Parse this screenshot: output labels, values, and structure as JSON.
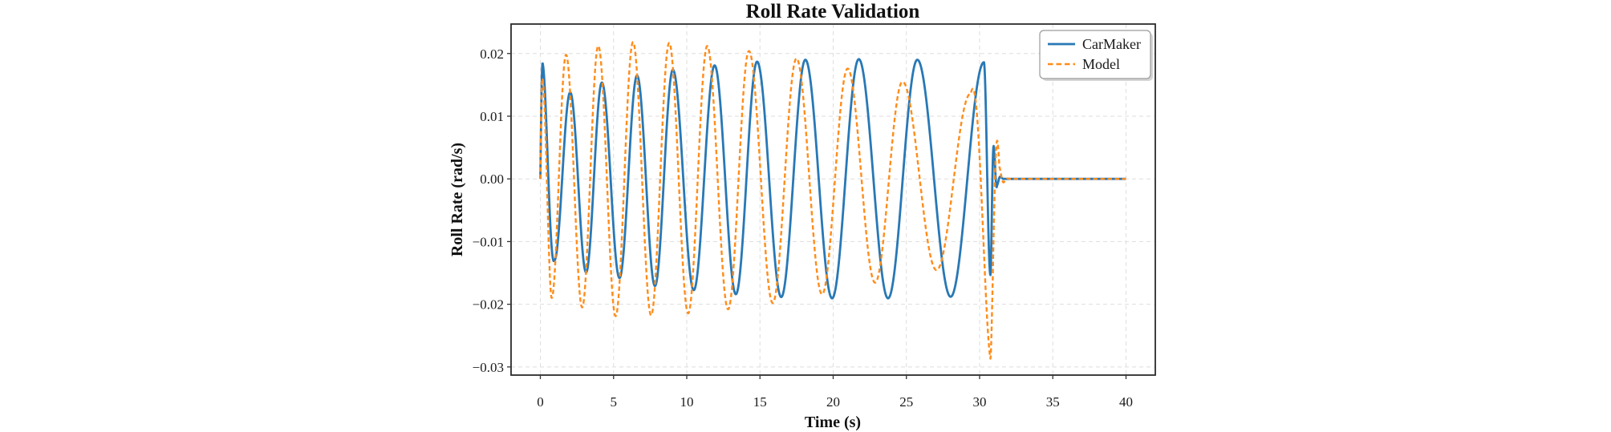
{
  "chart_data": {
    "type": "line",
    "title": "Roll Rate Validation",
    "xlabel": "Time (s)",
    "ylabel": "Roll Rate (rad/s)",
    "xlim": [
      -2,
      42
    ],
    "ylim": [
      -0.0313,
      0.0247
    ],
    "grid": true,
    "grid_style": "dashed",
    "legend_position": "upper right",
    "x_ticks": {
      "values": [
        0,
        5,
        10,
        15,
        20,
        25,
        30,
        35,
        40
      ],
      "labels": [
        "0",
        "5",
        "10",
        "15",
        "20",
        "25",
        "30",
        "35",
        "40"
      ]
    },
    "y_ticks": {
      "values": [
        0.02,
        0.01,
        0.0,
        -0.01,
        -0.02,
        -0.03
      ],
      "labels": [
        "0.02",
        "0.01",
        "0.00",
        "−0.01",
        "−0.02",
        "−0.03"
      ]
    },
    "series": [
      {
        "name": "CarMaker",
        "slug": "carmaker",
        "color": "#2878b5",
        "style": "solid",
        "line_width": 2.8,
        "t_end": 40,
        "signal_model": "piecewise chirp: value = amplitude(t) * sin(pi * phase(t)); phase anchors mark extrema (sin = ±1), linear in between",
        "phase_anchors_pi": [
          [
            0,
            -2
          ],
          [
            0.15,
            -1.5
          ],
          [
            0.95,
            -0.5
          ],
          [
            2.03,
            0.5
          ],
          [
            4.2,
            2.5
          ],
          [
            6.6,
            4.5
          ],
          [
            9.05,
            6.5
          ],
          [
            11.9,
            8.5
          ],
          [
            14.8,
            10.5
          ],
          [
            18.1,
            12.5
          ],
          [
            21.75,
            14.5
          ],
          [
            25.75,
            16.5
          ],
          [
            30.3,
            18.5
          ],
          [
            30.75,
            19.5
          ],
          [
            31.0,
            20.5
          ],
          [
            31.2,
            21.5
          ],
          [
            31.45,
            22.5
          ]
        ],
        "amplitude_knots": [
          [
            0,
            0.0185
          ],
          [
            0.15,
            0.0185
          ],
          [
            0.95,
            0.013
          ],
          [
            2.03,
            0.0138
          ],
          [
            3.2,
            0.015
          ],
          [
            5.4,
            0.0158
          ],
          [
            7.5,
            0.017
          ],
          [
            9.05,
            0.0174
          ],
          [
            11.9,
            0.0181
          ],
          [
            14.8,
            0.0187
          ],
          [
            18.1,
            0.019
          ],
          [
            21.75,
            0.0191
          ],
          [
            25.75,
            0.019
          ],
          [
            30.3,
            0.0186
          ],
          [
            30.75,
            0.0153
          ],
          [
            31.0,
            0.0042
          ],
          [
            31.2,
            0.001
          ],
          [
            31.45,
            0.0003
          ],
          [
            31.6,
            0
          ],
          [
            40,
            0
          ]
        ],
        "key_points_note": "initial spike to 0.0185 at t=0.15; peaks grow 0.0134->0.019; last peak 0.0186 @ t=30.3; drop to -0.0153 @ 30.75; rebound +0.0042 @ 31.0; zero from t=31.6 to 40"
      },
      {
        "name": "Model",
        "slug": "model",
        "color": "#ff8c1a",
        "style": "dashed",
        "line_width": 2.4,
        "t_end": 40,
        "signal_model": "piecewise chirp: value = amplitude(t) * sin(pi * phase(t)); phase anchors mark extrema (sin = ±1), linear in between",
        "phase_anchors_pi": [
          [
            0,
            -2
          ],
          [
            0.12,
            -1.5
          ],
          [
            0.77,
            -0.5
          ],
          [
            1.75,
            0.5
          ],
          [
            3.95,
            2.5
          ],
          [
            6.33,
            4.5
          ],
          [
            8.8,
            6.5
          ],
          [
            11.4,
            8.5
          ],
          [
            14.25,
            10.5
          ],
          [
            17.5,
            12.5
          ],
          [
            21.0,
            14.5
          ],
          [
            24.75,
            16.5
          ],
          [
            29.4,
            18.5
          ],
          [
            30.75,
            19.5
          ],
          [
            31.35,
            20.5
          ],
          [
            31.7,
            21.5
          ],
          [
            32.0,
            22.5
          ]
        ],
        "amplitude_knots": [
          [
            0,
            0.016
          ],
          [
            0.12,
            0.016
          ],
          [
            0.77,
            0.019
          ],
          [
            1.75,
            0.0198
          ],
          [
            2.85,
            0.0205
          ],
          [
            5.0,
            0.0219
          ],
          [
            8.8,
            0.0217
          ],
          [
            11.4,
            0.0212
          ],
          [
            14.25,
            0.0204
          ],
          [
            17.5,
            0.0192
          ],
          [
            21.0,
            0.0176
          ],
          [
            24.75,
            0.0155
          ],
          [
            29.4,
            0.0136
          ],
          [
            30.75,
            0.0288
          ],
          [
            31.35,
            0.0019
          ],
          [
            31.7,
            0.0004
          ],
          [
            32.0,
            0
          ],
          [
            40,
            0
          ]
        ],
        "key_points_note": "leads CarMaker; peaks 0.0198->0.0219 then decay to 0.0136 @ t=29.4; deep spike to -0.0288 @ t=30.75; small bump +0.0019 @ 31.35; zero from t=32 to 40"
      }
    ],
    "legend": {
      "entries": [
        "CarMaker",
        "Model"
      ]
    },
    "colors": {
      "frame": "#2b2b2b",
      "grid": "#dedede",
      "background": "#ffffff"
    }
  }
}
